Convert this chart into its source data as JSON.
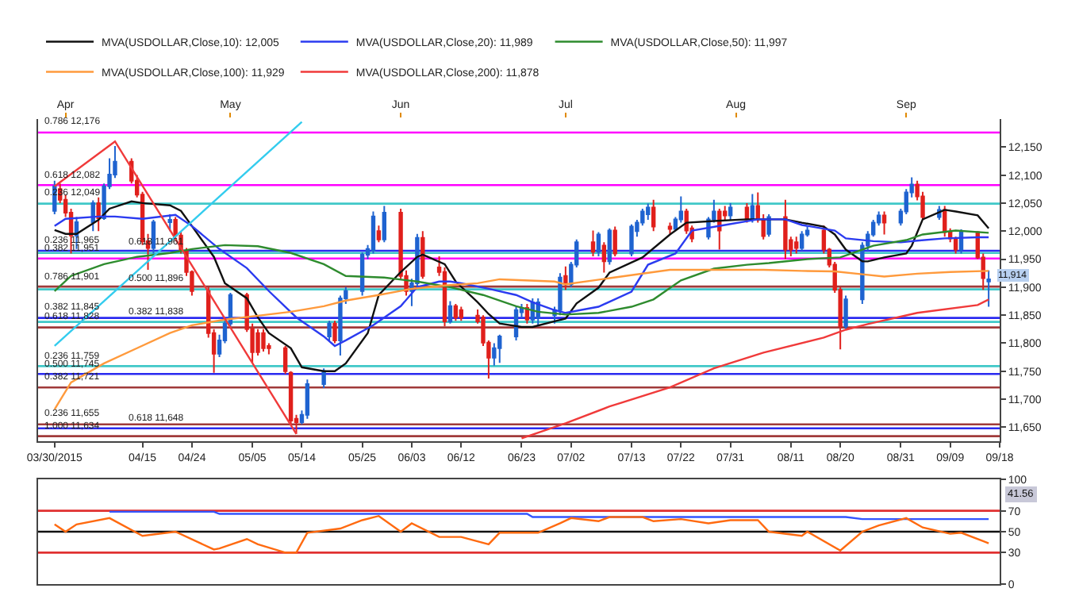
{
  "chart_data": [
    {
      "type": "candlestick",
      "x": [
        "2015-03-30",
        "2015-03-31",
        "2015-04-01",
        "2015-04-02",
        "2015-04-03",
        "2015-04-06",
        "2015-04-07",
        "2015-04-08",
        "2015-04-09",
        "2015-04-10",
        "2015-04-13",
        "2015-04-14",
        "2015-04-15",
        "2015-04-16",
        "2015-04-17",
        "2015-04-20",
        "2015-04-21",
        "2015-04-22",
        "2015-04-23",
        "2015-04-24",
        "2015-04-27",
        "2015-04-28",
        "2015-04-29",
        "2015-04-30",
        "2015-05-01",
        "2015-05-04",
        "2015-05-05",
        "2015-05-06",
        "2015-05-07",
        "2015-05-08",
        "2015-05-11",
        "2015-05-12",
        "2015-05-13",
        "2015-05-14",
        "2015-05-15",
        "2015-05-18",
        "2015-05-19",
        "2015-05-20",
        "2015-05-21",
        "2015-05-22",
        "2015-05-25",
        "2015-05-26",
        "2015-05-27",
        "2015-05-28",
        "2015-05-29",
        "2015-06-01",
        "2015-06-02",
        "2015-06-03",
        "2015-06-04",
        "2015-06-05",
        "2015-06-08",
        "2015-06-09",
        "2015-06-10",
        "2015-06-11",
        "2015-06-12",
        "2015-06-15",
        "2015-06-16",
        "2015-06-17",
        "2015-06-18",
        "2015-06-19",
        "2015-06-22",
        "2015-06-23",
        "2015-06-24",
        "2015-06-25",
        "2015-06-26",
        "2015-06-29",
        "2015-06-30",
        "2015-07-01",
        "2015-07-02",
        "2015-07-03",
        "2015-07-06",
        "2015-07-07",
        "2015-07-08",
        "2015-07-09",
        "2015-07-10",
        "2015-07-13",
        "2015-07-14",
        "2015-07-15",
        "2015-07-16",
        "2015-07-17",
        "2015-07-20",
        "2015-07-21",
        "2015-07-22",
        "2015-07-23",
        "2015-07-24",
        "2015-07-27",
        "2015-07-28",
        "2015-07-29",
        "2015-07-30",
        "2015-07-31",
        "2015-08-03",
        "2015-08-04",
        "2015-08-05",
        "2015-08-06",
        "2015-08-07",
        "2015-08-10",
        "2015-08-11",
        "2015-08-12",
        "2015-08-13",
        "2015-08-14",
        "2015-08-17",
        "2015-08-18",
        "2015-08-19",
        "2015-08-20",
        "2015-08-21",
        "2015-08-24",
        "2015-08-25",
        "2015-08-26",
        "2015-08-27",
        "2015-08-28",
        "2015-08-31",
        "2015-09-01",
        "2015-09-02",
        "2015-09-03",
        "2015-09-04",
        "2015-09-07",
        "2015-09-08",
        "2015-09-09",
        "2015-09-10",
        "2015-09-11",
        "2015-09-14",
        "2015-09-15",
        "2015-09-16"
      ],
      "ohlc": [
        [
          12036,
          12090,
          12030,
          12080
        ],
        [
          12075,
          12085,
          12050,
          12056
        ],
        [
          12056,
          12065,
          12025,
          12033
        ],
        [
          12033,
          12040,
          11960,
          11992
        ],
        [
          11992,
          12025,
          11968,
          12016
        ],
        [
          12016,
          12055,
          12000,
          12050
        ],
        [
          12050,
          12060,
          12000,
          12023
        ],
        [
          12023,
          12085,
          12020,
          12080
        ],
        [
          12080,
          12130,
          12075,
          12101
        ],
        [
          12101,
          12152,
          12095,
          12124
        ],
        [
          12124,
          12130,
          12085,
          12090
        ],
        [
          12090,
          12100,
          12060,
          12065
        ],
        [
          12065,
          12070,
          11975,
          11982
        ],
        [
          11982,
          11995,
          11931,
          11970
        ],
        [
          11970,
          12020,
          11960,
          12016
        ],
        [
          12016,
          12030,
          12000,
          12020
        ],
        [
          12020,
          12025,
          11985,
          11992
        ],
        [
          11992,
          12000,
          11960,
          11965
        ],
        [
          11965,
          11970,
          11920,
          11927
        ],
        [
          11927,
          11930,
          11885,
          11893
        ],
        [
          11893,
          11900,
          11810,
          11818
        ],
        [
          11818,
          11825,
          11747,
          11781
        ],
        [
          11781,
          11815,
          11775,
          11805
        ],
        [
          11805,
          11840,
          11800,
          11835
        ],
        [
          11835,
          11890,
          11830,
          11886
        ],
        [
          11886,
          11890,
          11820,
          11825
        ],
        [
          11825,
          11835,
          11764,
          11784
        ],
        [
          11818,
          11825,
          11778,
          11784
        ],
        [
          11818,
          11825,
          11785,
          11791
        ],
        [
          11795,
          11800,
          11780,
          11791
        ],
        [
          11791,
          11795,
          11745,
          11750
        ],
        [
          11747,
          11750,
          11655,
          11662
        ],
        [
          11665,
          11672,
          11638,
          11659
        ],
        [
          11659,
          11680,
          11655,
          11672
        ],
        [
          11672,
          11735,
          11665,
          11727
        ],
        [
          11727,
          11755,
          11720,
          11750
        ],
        [
          11812,
          11840,
          11805,
          11835
        ],
        [
          11835,
          11840,
          11800,
          11805
        ],
        [
          11805,
          11885,
          11778,
          11880
        ],
        [
          11880,
          11900,
          11870,
          11893
        ],
        [
          11893,
          11962,
          11885,
          11958
        ],
        [
          11958,
          11975,
          11950,
          11968
        ],
        [
          11965,
          12035,
          11960,
          12026
        ],
        [
          12000,
          12010,
          11980,
          11985
        ],
        [
          11985,
          12045,
          11980,
          12033
        ],
        [
          12033,
          12040,
          11915,
          11920
        ],
        [
          11920,
          11930,
          11885,
          11893
        ],
        [
          11893,
          11915,
          11866,
          11907
        ],
        [
          11907,
          11995,
          11900,
          11988
        ],
        [
          11988,
          12000,
          11915,
          11920
        ],
        [
          11935,
          11955,
          11920,
          11927
        ],
        [
          11927,
          11935,
          11830,
          11839
        ],
        [
          11839,
          11875,
          11835,
          11866
        ],
        [
          11866,
          11870,
          11840,
          11846
        ],
        [
          11859,
          11865,
          11840,
          11846
        ],
        [
          11849,
          11860,
          11835,
          11839
        ],
        [
          11846,
          11850,
          11795,
          11801
        ],
        [
          11801,
          11805,
          11737,
          11774
        ],
        [
          11774,
          11800,
          11760,
          11791
        ],
        [
          11791,
          11815,
          11765,
          11812
        ],
        [
          11812,
          11865,
          11805,
          11859
        ],
        [
          11855,
          11870,
          11845,
          11863
        ],
        [
          11863,
          11870,
          11835,
          11842
        ],
        [
          11842,
          11880,
          11835,
          11873
        ],
        [
          11845,
          11880,
          11830,
          11873
        ],
        [
          11850,
          11865,
          11835,
          11859
        ],
        [
          11859,
          11925,
          11850,
          11917
        ],
        [
          11920,
          11937,
          11895,
          11905
        ],
        [
          11905,
          11945,
          11900,
          11940
        ],
        [
          11940,
          11985,
          11935,
          11980
        ],
        [
          11980,
          12001,
          11955,
          11963
        ],
        [
          11963,
          11998,
          11955,
          11994
        ],
        [
          11974,
          11980,
          11926,
          11946
        ],
        [
          11946,
          12005,
          11940,
          12001
        ],
        [
          12001,
          12008,
          11955,
          11960
        ],
        [
          11960,
          12012,
          11955,
          12008
        ],
        [
          12000,
          12020,
          11990,
          12015
        ],
        [
          12015,
          12040,
          12010,
          12035
        ],
        [
          12030,
          12049,
          12020,
          12042
        ],
        [
          12042,
          12056,
          12000,
          12008
        ],
        [
          12008,
          12015,
          11995,
          12004
        ],
        [
          12004,
          12025,
          12000,
          12021
        ],
        [
          12021,
          12062,
          12015,
          12035
        ],
        [
          12035,
          12040,
          11995,
          12001
        ],
        [
          12005,
          12010,
          11980,
          11987
        ],
        [
          11990,
          12025,
          11985,
          12021
        ],
        [
          12021,
          12056,
          12015,
          12035
        ],
        [
          12035,
          12040,
          11967,
          12001
        ],
        [
          12035,
          12045,
          12020,
          12028
        ],
        [
          12028,
          12050,
          12020,
          12042
        ],
        [
          12042,
          12050,
          12015,
          12021
        ],
        [
          12021,
          12066,
          12015,
          12045
        ],
        [
          12045,
          12069,
          12015,
          12021
        ],
        [
          12021,
          12030,
          11985,
          11991
        ],
        [
          11995,
          12030,
          11990,
          12025
        ],
        [
          12025,
          12056,
          11950,
          11967
        ],
        [
          11984,
          11990,
          11955,
          11967
        ],
        [
          11980,
          11990,
          11960,
          11970
        ],
        [
          11970,
          12000,
          11965,
          11994
        ],
        [
          11994,
          12008,
          11990,
          12001
        ],
        [
          12001,
          12010,
          11960,
          11967
        ],
        [
          11967,
          11970,
          11935,
          11940
        ],
        [
          11940,
          11945,
          11890,
          11895
        ],
        [
          11895,
          11900,
          11789,
          11830
        ],
        [
          11830,
          11885,
          11825,
          11878
        ],
        [
          11878,
          11980,
          11870,
          11974
        ],
        [
          11974,
          12000,
          11965,
          11994
        ],
        [
          11994,
          12020,
          11990,
          12015
        ],
        [
          12015,
          12035,
          12010,
          12028
        ],
        [
          12028,
          12035,
          11994,
          12015
        ],
        [
          12015,
          12040,
          12010,
          12035
        ],
        [
          12035,
          12075,
          12030,
          12069
        ],
        [
          12069,
          12096,
          12060,
          12083
        ],
        [
          12083,
          12090,
          12055,
          12062
        ],
        [
          12062,
          12070,
          12020,
          12025
        ],
        [
          12025,
          12045,
          12020,
          12038
        ],
        [
          12038,
          12045,
          11990,
          11998
        ],
        [
          11998,
          12005,
          11980,
          11987
        ],
        [
          11987,
          11990,
          11960,
          11967
        ],
        [
          11967,
          12003,
          11960,
          11998
        ],
        [
          11998,
          12000,
          11950,
          11953
        ],
        [
          11953,
          11960,
          11895,
          11916
        ],
        [
          11910,
          11930,
          11865,
          11914
        ]
      ],
      "series": [
        {
          "type": "line",
          "name": "MVA(USDOLLAR,Close,10): 12,005",
          "color": "#111111",
          "x": [
            "2015-03-30",
            "2015-04-01",
            "2015-04-03",
            "2015-04-07",
            "2015-04-09",
            "2015-04-13",
            "2015-04-15",
            "2015-04-20",
            "2015-04-22",
            "2015-04-24",
            "2015-04-28",
            "2015-04-30",
            "2015-05-04",
            "2015-05-06",
            "2015-05-08",
            "2015-05-12",
            "2015-05-14",
            "2015-05-18",
            "2015-05-20",
            "2015-05-22",
            "2015-05-26",
            "2015-05-28",
            "2015-06-01",
            "2015-06-04",
            "2015-06-05",
            "2015-06-09",
            "2015-06-11",
            "2015-06-15",
            "2015-06-17",
            "2015-06-19",
            "2015-06-23",
            "2015-06-25",
            "2015-06-29",
            "2015-07-01",
            "2015-07-03",
            "2015-07-07",
            "2015-07-09",
            "2015-07-15",
            "2015-07-20",
            "2015-07-23",
            "2015-07-28",
            "2015-08-03",
            "2015-08-06",
            "2015-08-10",
            "2015-08-13",
            "2015-08-17",
            "2015-08-19",
            "2015-08-21",
            "2015-08-24",
            "2015-08-25",
            "2015-08-28",
            "2015-09-01",
            "2015-09-02",
            "2015-09-04",
            "2015-09-08",
            "2015-09-10",
            "2015-09-14",
            "2015-09-16"
          ],
          "values": [
            12002,
            11995,
            11995,
            12020,
            12040,
            12053,
            12050,
            12046,
            12036,
            12009,
            11954,
            11907,
            11880,
            11846,
            11818,
            11791,
            11757,
            11750,
            11750,
            11764,
            11818,
            11886,
            11927,
            11954,
            11958,
            11941,
            11910,
            11873,
            11852,
            11835,
            11829,
            11829,
            11839,
            11844,
            11871,
            11899,
            11926,
            11953,
            11994,
            12015,
            12018,
            12021,
            12021,
            12021,
            12015,
            12008,
            11994,
            11967,
            11946,
            11946,
            11953,
            11960,
            11974,
            12021,
            12038,
            12035,
            12028,
            12005
          ]
        },
        {
          "type": "line",
          "name": "MVA(USDOLLAR,Close,20): 11,989",
          "color": "#2b3bf0",
          "x": [
            "2015-03-30",
            "2015-04-01",
            "2015-04-07",
            "2015-04-10",
            "2015-04-15",
            "2015-04-21",
            "2015-04-24",
            "2015-04-29",
            "2015-05-04",
            "2015-05-08",
            "2015-05-13",
            "2015-05-18",
            "2015-05-20",
            "2015-05-22",
            "2015-05-27",
            "2015-06-01",
            "2015-06-04",
            "2015-06-08",
            "2015-06-10",
            "2015-06-12",
            "2015-06-17",
            "2015-06-22",
            "2015-06-25",
            "2015-06-29",
            "2015-07-01",
            "2015-07-07",
            "2015-07-13",
            "2015-07-16",
            "2015-07-21",
            "2015-07-24",
            "2015-07-30",
            "2015-08-05",
            "2015-08-10",
            "2015-08-13",
            "2015-08-19",
            "2015-08-21",
            "2015-08-26",
            "2015-08-31",
            "2015-09-03",
            "2015-09-08",
            "2015-09-14",
            "2015-09-16"
          ],
          "values": [
            12009,
            12022,
            12026,
            12026,
            12022,
            12029,
            12009,
            11968,
            11934,
            11893,
            11846,
            11812,
            11795,
            11805,
            11832,
            11866,
            11900,
            11910,
            11910,
            11907,
            11897,
            11886,
            11873,
            11859,
            11854,
            11865,
            11892,
            11940,
            11960,
            12001,
            12011,
            12021,
            12021,
            12011,
            12001,
            11987,
            11982,
            11980,
            11983,
            11987,
            11989,
            11989
          ]
        },
        {
          "type": "line",
          "name": "MVA(USDOLLAR,Close,50): 11,997",
          "color": "#2e8b2e",
          "x": [
            "2015-03-30",
            "2015-04-02",
            "2015-04-08",
            "2015-04-14",
            "2015-04-20",
            "2015-04-24",
            "2015-04-30",
            "2015-05-06",
            "2015-05-12",
            "2015-05-18",
            "2015-05-22",
            "2015-05-29",
            "2015-06-04",
            "2015-06-10",
            "2015-06-16",
            "2015-06-22",
            "2015-06-26",
            "2015-07-01",
            "2015-07-07",
            "2015-07-13",
            "2015-07-17",
            "2015-07-22",
            "2015-07-28",
            "2015-08-03",
            "2015-08-07",
            "2015-08-14",
            "2015-08-20",
            "2015-08-26",
            "2015-09-01",
            "2015-09-04",
            "2015-09-10",
            "2015-09-16"
          ],
          "values": [
            11893,
            11920,
            11941,
            11954,
            11961,
            11968,
            11975,
            11973,
            11961,
            11941,
            11920,
            11917,
            11910,
            11900,
            11886,
            11866,
            11856,
            11851,
            11854,
            11865,
            11878,
            11912,
            11933,
            11940,
            11943,
            11950,
            11953,
            11974,
            11984,
            11994,
            12001,
            11997
          ]
        },
        {
          "type": "line",
          "name": "MVA(USDOLLAR,Close,100): 11,929",
          "color": "#ff9a3c",
          "x": [
            "2015-03-30",
            "2015-04-02",
            "2015-04-08",
            "2015-04-14",
            "2015-04-20",
            "2015-04-24",
            "2015-04-30",
            "2015-05-06",
            "2015-05-12",
            "2015-05-18",
            "2015-05-22",
            "2015-05-28",
            "2015-06-03",
            "2015-06-09",
            "2015-06-15",
            "2015-06-19",
            "2015-06-29",
            "2015-07-01",
            "2015-07-09",
            "2015-07-20",
            "2015-07-28",
            "2015-08-06",
            "2015-08-13",
            "2015-08-19",
            "2015-08-24",
            "2015-08-28",
            "2015-09-03",
            "2015-09-09",
            "2015-09-16"
          ],
          "values": [
            11682,
            11730,
            11764,
            11791,
            11818,
            11832,
            11842,
            11849,
            11856,
            11866,
            11876,
            11886,
            11897,
            11903,
            11907,
            11914,
            11910,
            11905,
            11916,
            11931,
            11931,
            11931,
            11929,
            11928,
            11923,
            11919,
            11924,
            11927,
            11929
          ]
        },
        {
          "type": "line",
          "name": "MVA(USDOLLAR,Close,200): 11,878",
          "color": "#f03a3a",
          "x": [
            "2015-06-23",
            "2015-07-01",
            "2015-07-09",
            "2015-07-20",
            "2015-07-28",
            "2015-08-06",
            "2015-08-17",
            "2015-08-21",
            "2015-08-25",
            "2015-09-03",
            "2015-09-14",
            "2015-09-16"
          ],
          "values": [
            11630,
            11657,
            11687,
            11721,
            11755,
            11783,
            11810,
            11824,
            11834,
            11854,
            11868,
            11878
          ]
        },
        {
          "type": "line",
          "color": "#f03a3a",
          "x": [
            "2015-03-30",
            "2015-04-10",
            "2015-05-13"
          ],
          "values": [
            12080,
            12160,
            11638
          ]
        },
        {
          "type": "line",
          "color": "#33ccee",
          "x": [
            "2015-03-30",
            "2015-05-14"
          ],
          "values": [
            11795,
            12195
          ]
        }
      ],
      "xlim": [
        "2015-03-27",
        "2015-09-18"
      ],
      "xticks": [
        {
          "value": "2015-03-30",
          "label": "03/30/2015"
        },
        {
          "value": "2015-04-15",
          "label": "04/15"
        },
        {
          "value": "2015-04-24",
          "label": "04/24"
        },
        {
          "value": "2015-05-05",
          "label": "05/05"
        },
        {
          "value": "2015-05-14",
          "label": "05/14"
        },
        {
          "value": "2015-05-25",
          "label": "05/25"
        },
        {
          "value": "2015-06-03",
          "label": "06/03"
        },
        {
          "value": "2015-06-12",
          "label": "06/12"
        },
        {
          "value": "2015-06-23",
          "label": "06/23"
        },
        {
          "value": "2015-07-02",
          "label": "07/02"
        },
        {
          "value": "2015-07-13",
          "label": "07/13"
        },
        {
          "value": "2015-07-22",
          "label": "07/22"
        },
        {
          "value": "2015-07-31",
          "label": "07/31"
        },
        {
          "value": "2015-08-11",
          "label": "08/11"
        },
        {
          "value": "2015-08-20",
          "label": "08/20"
        },
        {
          "value": "2015-08-31",
          "label": "08/31"
        },
        {
          "value": "2015-09-09",
          "label": "09/09"
        },
        {
          "value": "2015-09-18",
          "label": "09/18"
        }
      ],
      "x2lim": [
        "2015-03-27",
        "2015-09-18"
      ],
      "x2ticks": [
        {
          "value": "2015-04-01",
          "label": "Apr"
        },
        {
          "value": "2015-05-01",
          "label": "May"
        },
        {
          "value": "2015-06-01",
          "label": "Jun"
        },
        {
          "value": "2015-07-01",
          "label": "Jul"
        },
        {
          "value": "2015-08-01",
          "label": "Aug"
        },
        {
          "value": "2015-09-01",
          "label": "Sep"
        }
      ],
      "ylim": [
        11625,
        12200
      ],
      "yticks": [
        {
          "value": 11650,
          "label": "11,650"
        },
        {
          "value": 11700,
          "label": "11,700"
        },
        {
          "value": 11750,
          "label": "11,750"
        },
        {
          "value": 11800,
          "label": "11,800"
        },
        {
          "value": 11850,
          "label": "11,850"
        },
        {
          "value": 11900,
          "label": "11,900"
        },
        {
          "value": 11950,
          "label": "11,950"
        },
        {
          "value": 12000,
          "label": "12,000"
        },
        {
          "value": 12050,
          "label": "12,050"
        },
        {
          "value": 12100,
          "label": "12,100"
        },
        {
          "value": 12150,
          "label": "12,150"
        }
      ],
      "ref_lines": [
        {
          "axis": "y",
          "value": 12176,
          "label": "0.786 12,176",
          "color": "#ff00ff"
        },
        {
          "axis": "y",
          "value": 12082,
          "label": "0.618 12,082",
          "color": "#ff00ff"
        },
        {
          "axis": "y",
          "value": 12049,
          "label": "0.236 12,049",
          "color": "#40c8c8"
        },
        {
          "axis": "y",
          "value": 11965,
          "label": "0.236 11,965",
          "color": "#2a2af0"
        },
        {
          "axis": "y",
          "value": 11961,
          "label": "0.618 11,961",
          "color": "#40c8c8"
        },
        {
          "axis": "y",
          "value": 11951,
          "label": "0.382 11,951",
          "color": "#ff00ff"
        },
        {
          "axis": "y",
          "value": 11901,
          "label": "0.786 11,901",
          "color": "#a03a3a"
        },
        {
          "axis": "y",
          "value": 11896,
          "label": "0.500 11,896",
          "color": "#40c8c8"
        },
        {
          "axis": "y",
          "value": 11845,
          "label": "0.382 11,845",
          "color": "#2a2af0"
        },
        {
          "axis": "y",
          "value": 11838,
          "label": "0.382 11,838",
          "color": "#40c8c8"
        },
        {
          "axis": "y",
          "value": 11828,
          "label": "0.618 11,828",
          "color": "#a03a3a"
        },
        {
          "axis": "y",
          "value": 11759,
          "label": "0.236 11,759",
          "color": "#40c8c8"
        },
        {
          "axis": "y",
          "value": 11745,
          "label": "0.500 11,745",
          "color": "#2a2af0"
        },
        {
          "axis": "y",
          "value": 11721,
          "label": "0.382 11,721",
          "color": "#a03a3a"
        },
        {
          "axis": "y",
          "value": 11655,
          "label": "0.236 11,655",
          "color": "#a03a3a"
        },
        {
          "axis": "y",
          "value": 11648,
          "label": "0.618 11,648",
          "color": "#2a2af0"
        },
        {
          "axis": "y",
          "value": 11634,
          "label": "1.000 11,634",
          "color": "#a03a3a"
        }
      ],
      "annotations": [
        {
          "text": "11,914",
          "x": "2015-09-16",
          "y": 11914
        }
      ],
      "legend": "top left"
    },
    {
      "type": "line",
      "series": [
        {
          "color": "#3355ff",
          "x": [
            "2015-04-09",
            "2015-04-28",
            "2015-04-29",
            "2015-06-24",
            "2015-06-25",
            "2015-08-21",
            "2015-08-24",
            "2015-09-16"
          ],
          "values": [
            69,
            69,
            67,
            67,
            64,
            64,
            62,
            62
          ]
        },
        {
          "color": "#ff6a10",
          "x": [
            "2015-03-30",
            "2015-04-01",
            "2015-04-03",
            "2015-04-09",
            "2015-04-15",
            "2015-04-21",
            "2015-04-28",
            "2015-04-29",
            "2015-05-04",
            "2015-05-06",
            "2015-05-11",
            "2015-05-13",
            "2015-05-15",
            "2015-05-21",
            "2015-05-25",
            "2015-05-28",
            "2015-06-01",
            "2015-06-03",
            "2015-06-08",
            "2015-06-12",
            "2015-06-17",
            "2015-06-19",
            "2015-06-26",
            "2015-06-30",
            "2015-07-02",
            "2015-07-07",
            "2015-07-09",
            "2015-07-15",
            "2015-07-17",
            "2015-07-22",
            "2015-07-27",
            "2015-07-31",
            "2015-08-05",
            "2015-08-07",
            "2015-08-13",
            "2015-08-14",
            "2015-08-20",
            "2015-08-24",
            "2015-08-27",
            "2015-09-01",
            "2015-09-04",
            "2015-09-09",
            "2015-09-11",
            "2015-09-15",
            "2015-09-16"
          ],
          "values": [
            57,
            50,
            57,
            63,
            46,
            50,
            33,
            34,
            43,
            38,
            30,
            30,
            49,
            53,
            61,
            65,
            50,
            58,
            45,
            45,
            38,
            49,
            49,
            58,
            63,
            60,
            64,
            64,
            60,
            62,
            58,
            61,
            61,
            50,
            46,
            50,
            32,
            50,
            56,
            63,
            54,
            48,
            49,
            41,
            39
          ]
        }
      ],
      "xlim": [
        "2015-03-27",
        "2015-09-18"
      ],
      "ylim": [
        0,
        100
      ],
      "yticks": [
        0,
        30,
        50,
        70,
        100
      ],
      "ref_lines": [
        {
          "axis": "y",
          "value": 70,
          "color": "#e03030"
        },
        {
          "axis": "y",
          "value": 50,
          "color": "#111111"
        },
        {
          "axis": "y",
          "value": 30,
          "color": "#e03030"
        }
      ],
      "annotations": [
        "41.56"
      ],
      "tick_labels": "y"
    }
  ]
}
